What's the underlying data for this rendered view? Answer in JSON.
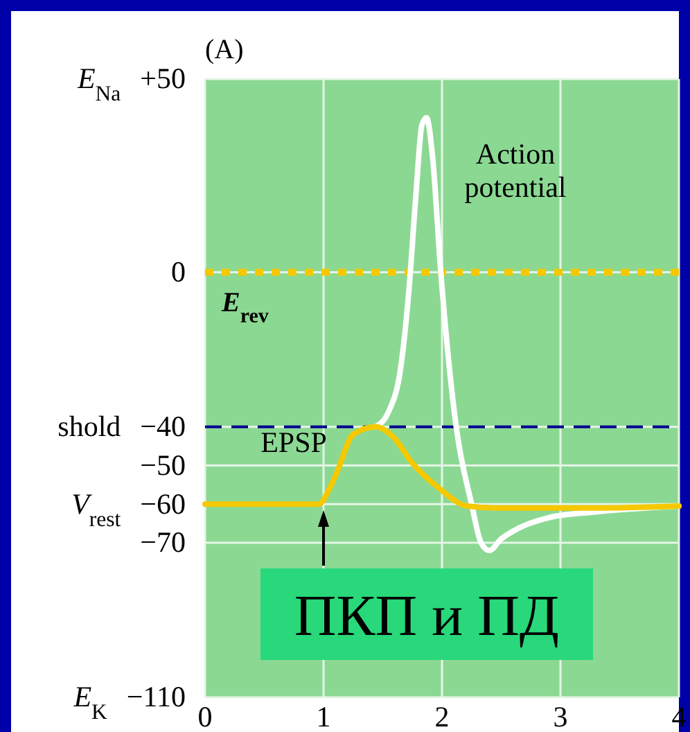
{
  "chart_data": {
    "type": "line",
    "title": "(A)",
    "series": [
      {
        "color": "#ffffff",
        "x": [
          1.44,
          1.55,
          1.65,
          1.72,
          1.78,
          1.83,
          1.87,
          1.92,
          1.99,
          2.12,
          2.25,
          2.33,
          2.4,
          2.5,
          2.6,
          2.9,
          3.3,
          4
        ],
        "values": [
          -40,
          -36,
          -25,
          -5,
          20,
          38,
          40,
          30,
          0,
          -40,
          -60,
          -70,
          -72,
          -69,
          -67,
          -63.5,
          -62,
          -60.5
        ]
      },
      {
        "color": "#f5c800",
        "x": [
          0,
          0.96,
          1.05,
          1.11,
          1.25,
          1.44,
          1.6,
          1.74,
          1.98,
          2.21,
          2.45,
          3.3,
          4
        ],
        "values": [
          -60,
          -60,
          -56,
          -52,
          -42,
          -40,
          -43,
          -49,
          -56,
          -60.5,
          -61,
          -61,
          -60.5
        ]
      }
    ],
    "xlim": [
      0,
      4
    ],
    "xticks": [
      0,
      1,
      2,
      3,
      4
    ],
    "ylim": [
      -110,
      50
    ],
    "yticks": [
      {
        "value": 50,
        "label": "E$_{Na}$ +50"
      },
      0,
      {
        "value": -40,
        "label": "shold −40"
      },
      {
        "value": -50,
        "label": "−50"
      },
      {
        "value": -60,
        "label": "V$_{rest}$ −60"
      },
      {
        "value": -70,
        "label": "−70"
      },
      {
        "value": -110,
        "label": "E$_{K}$ −110"
      }
    ],
    "grid": true,
    "ref_lines": [
      {
        "axis": "y",
        "value": 0,
        "label": "E$_{rev}$",
        "color": "#f5c800",
        "line_style": "dotted"
      },
      {
        "axis": "y",
        "value": -40,
        "color": "#000090",
        "line_style": "dashed"
      }
    ],
    "annotations": [
      "Action potential",
      "EPSP",
      "ПКП и ПД"
    ]
  }
}
